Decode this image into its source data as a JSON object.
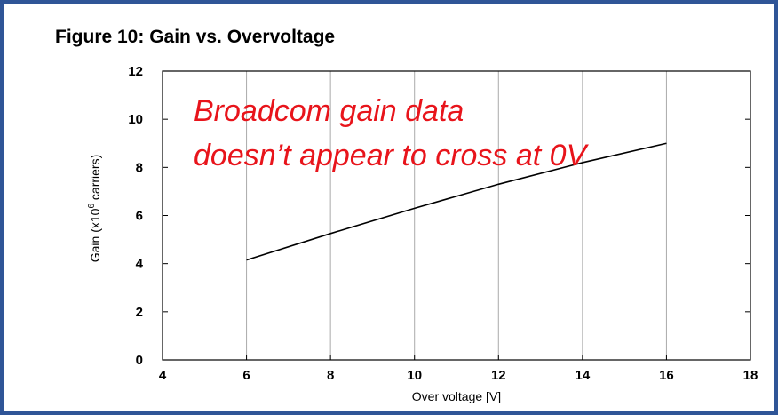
{
  "chart_data": {
    "type": "line",
    "title": "Figure 10:  Gain vs. Overvoltage",
    "xlabel": "Over voltage [V]",
    "ylabel": {
      "prefix": "Gain (x10",
      "sup": "6",
      "suffix": " carriers)"
    },
    "annotation": [
      "Broadcom gain data",
      "doesn’t appear to cross at 0V"
    ],
    "annotation_color": "#e8141b",
    "x": [
      6,
      8,
      10,
      12,
      14,
      16
    ],
    "series": [
      {
        "name": "Gain",
        "color": "#000000",
        "values": [
          4.15,
          5.25,
          6.3,
          7.3,
          8.2,
          9.0
        ]
      }
    ],
    "xlim": [
      4,
      18
    ],
    "xticks": [
      4,
      6,
      8,
      10,
      12,
      14,
      16,
      18
    ],
    "ylim": [
      0,
      12
    ],
    "yticks": [
      0,
      2,
      4,
      6,
      8,
      10,
      12
    ],
    "grid": "x"
  }
}
